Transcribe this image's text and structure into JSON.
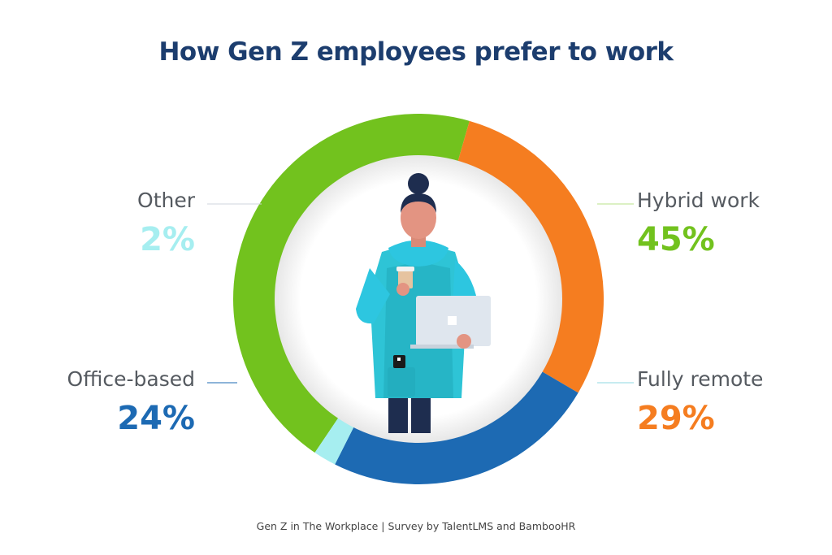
{
  "title": "How Gen Z employees prefer to work",
  "footer": "Gen Z in The Workplace | Survey by TalentLMS and BambooHR",
  "colors": {
    "hybrid": "#72c21e",
    "remote": "#f57d20",
    "office": "#1d6ab3",
    "other": "#a6eef0",
    "title": "#1c3d6e",
    "label": "#555a60"
  },
  "chart_data": {
    "type": "pie",
    "style": "donut",
    "title": "How Gen Z employees prefer to work",
    "slices": [
      {
        "label": "Hybrid work",
        "value": 45,
        "display": "45%",
        "color": "#72c21e"
      },
      {
        "label": "Fully remote",
        "value": 29,
        "display": "29%",
        "color": "#f57d20"
      },
      {
        "label": "Office-based",
        "value": 24,
        "display": "24%",
        "color": "#1d6ab3"
      },
      {
        "label": "Other",
        "value": 2,
        "display": "2%",
        "color": "#a6eef0"
      }
    ]
  }
}
